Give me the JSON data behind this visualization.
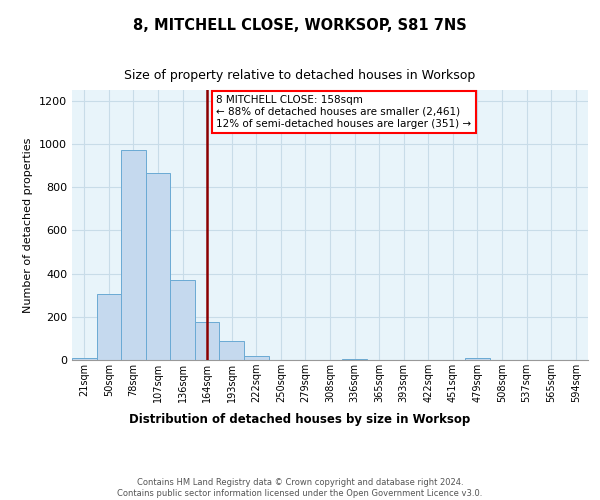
{
  "title": "8, MITCHELL CLOSE, WORKSOP, S81 7NS",
  "subtitle": "Size of property relative to detached houses in Worksop",
  "xlabel": "Distribution of detached houses by size in Worksop",
  "ylabel": "Number of detached properties",
  "footer_line1": "Contains HM Land Registry data © Crown copyright and database right 2024.",
  "footer_line2": "Contains public sector information licensed under the Open Government Licence v3.0.",
  "bin_labels": [
    "21sqm",
    "50sqm",
    "78sqm",
    "107sqm",
    "136sqm",
    "164sqm",
    "193sqm",
    "222sqm",
    "250sqm",
    "279sqm",
    "308sqm",
    "336sqm",
    "365sqm",
    "393sqm",
    "422sqm",
    "451sqm",
    "479sqm",
    "508sqm",
    "537sqm",
    "565sqm",
    "594sqm"
  ],
  "bar_values": [
    10,
    305,
    970,
    865,
    370,
    175,
    90,
    17,
    0,
    0,
    0,
    5,
    0,
    0,
    0,
    0,
    10,
    0,
    0,
    0,
    0
  ],
  "bar_color": "#c5d9ee",
  "bar_edgecolor": "#6aaad4",
  "grid_color": "#c8dce8",
  "property_line_x": 5.0,
  "annotation_text_line1": "8 MITCHELL CLOSE: 158sqm",
  "annotation_text_line2": "← 88% of detached houses are smaller (2,461)",
  "annotation_text_line3": "12% of semi-detached houses are larger (351) →",
  "annotation_box_color": "white",
  "annotation_box_edgecolor": "red",
  "vline_color": "#8b0000",
  "ylim": [
    0,
    1250
  ],
  "yticks": [
    0,
    200,
    400,
    600,
    800,
    1000,
    1200
  ],
  "background_color": "#e8f4fa"
}
